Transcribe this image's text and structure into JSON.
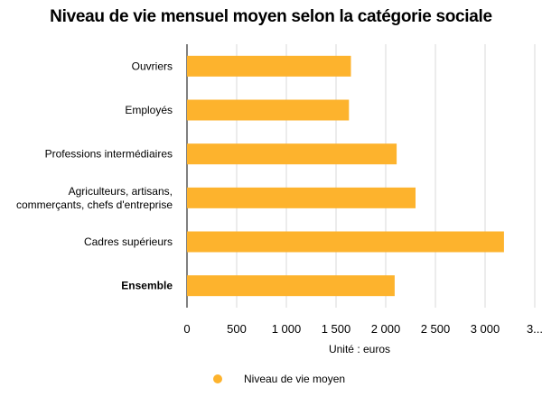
{
  "colors": {
    "bar": "#FDB32D",
    "grid": "#D9D9D9",
    "axis": "#000000"
  },
  "chart_data": {
    "type": "bar",
    "orientation": "horizontal",
    "title": "Niveau de vie mensuel moyen selon la catégorie sociale",
    "xlabel": "Unité : euros",
    "categories": [
      [
        "Ouvriers"
      ],
      [
        "Employés"
      ],
      [
        "Professions intermédiaires"
      ],
      [
        "Agriculteurs, artisans,",
        "commerçants, chefs d'entreprise"
      ],
      [
        "Cadres supérieurs"
      ],
      [
        "Ensemble"
      ]
    ],
    "bold_category_index": 5,
    "series": [
      {
        "name": "Niveau de vie moyen",
        "values": [
          1650,
          1630,
          2110,
          2300,
          3190,
          2090
        ]
      }
    ],
    "xlim": [
      0,
      3500
    ],
    "xticks": [
      "0",
      "500",
      "1 000",
      "1 500",
      "2 000",
      "2 500",
      "3 000",
      "3..."
    ],
    "grid": true,
    "legend_position": "bottom"
  }
}
